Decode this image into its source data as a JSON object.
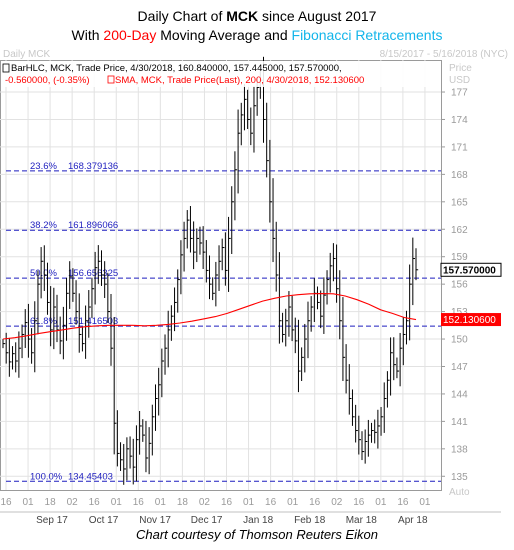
{
  "title": {
    "line1_prefix": "Daily Chart of ",
    "line1_ticker": "MCK",
    "line1_suffix": " since August 2017",
    "line2_prefix": "With ",
    "line2_sma": "200-Day",
    "line2_mid": " Moving Average and ",
    "line2_fib": "Fibonacci Retracements"
  },
  "caption": "Chart courtesy of Thomson Reuters Eikon",
  "header": {
    "left": "Daily MCK",
    "right": "8/15/2017 - 5/16/2018 (NYC)"
  },
  "legend": {
    "bar_line": "BarHLC, MCK, Trade Price, 4/30/2018, 160.840000, 157.445000, 157.570000,",
    "change": "-0.560000, (-0.35%)",
    "sma_line": "SMA, MCK, Trade Price(Last),  200,  4/30/2018, 152.130600"
  },
  "axis": {
    "price_label": "Price",
    "currency": "USD",
    "auto": "Auto"
  },
  "colors": {
    "bars": "#000000",
    "sma": "#ff0000",
    "fib": "#1f1fbf",
    "last_price_bg": "#ffffff",
    "sma_tag_bg": "#ff0000"
  },
  "chart_data": {
    "type": "line",
    "ylim": [
      133.5,
      180.5
    ],
    "y_ticks": [
      135,
      138,
      141,
      144,
      147,
      150,
      153,
      156,
      159,
      162,
      165,
      168,
      171,
      174,
      177
    ],
    "x_tick_labels": [
      "16",
      "01",
      "18",
      "02",
      "16",
      "01",
      "16",
      "01",
      "18",
      "02",
      "16",
      "01",
      "16",
      "01",
      "16",
      "02",
      "16",
      "01",
      "16",
      "01"
    ],
    "month_labels": [
      "Sep 17",
      "Oct 17",
      "Nov 17",
      "Dec 17",
      "Jan 18",
      "Feb 18",
      "Mar 18",
      "Apr 18"
    ],
    "fibonacci": [
      {
        "label": "100.0%",
        "value": 134.45403,
        "text": "134.45403"
      },
      {
        "label": "61.8%",
        "value": 151.416503,
        "text": "151.416503"
      },
      {
        "label": "50.0%",
        "value": 156.656325,
        "text": "156.656325"
      },
      {
        "label": "38.2%",
        "value": 161.896066,
        "text": "161.896066"
      },
      {
        "label": "23.6%",
        "value": 168.379136,
        "text": "168.379136"
      }
    ],
    "last_price": {
      "value": 157.57,
      "label": "157.570000"
    },
    "sma_last": {
      "value": 152.1306,
      "label": "152.130600"
    },
    "series": [
      {
        "kind": "close",
        "values": [
          149.5,
          148.5,
          147.5,
          148.4,
          147.6,
          149,
          150.5,
          151.8,
          150,
          148.5,
          152,
          156,
          158.5,
          157,
          154,
          151,
          153.5,
          151,
          149.8,
          151.5,
          155,
          156.8,
          155,
          153,
          150.5,
          149.5,
          152,
          153.5,
          155.5,
          157.8,
          158.5,
          157,
          156,
          153,
          149,
          140.8,
          137.5,
          136.8,
          135.8,
          138,
          137.2,
          136,
          139,
          140.5,
          139.5,
          137,
          138.6,
          141.5,
          143.5,
          145,
          147.6,
          149,
          151,
          152.5,
          154,
          156.5,
          159.2,
          161,
          163,
          161,
          159.5,
          161,
          160.5,
          159.5,
          157.5,
          156,
          155,
          157,
          158.5,
          160,
          157.5,
          161,
          165,
          168.5,
          172.5,
          174.5,
          176.2,
          174,
          172.5,
          175.5,
          177.5,
          178.3,
          174,
          169.5,
          165,
          161,
          157,
          152,
          150.5,
          152,
          153.5,
          151,
          149.8,
          146.5,
          148,
          150,
          152,
          153.5,
          155,
          154,
          152.5,
          154.8,
          156.5,
          158,
          158.8,
          155.5,
          152,
          148,
          145.5,
          143.5,
          141.5,
          140,
          139,
          137.7,
          138.8,
          139.5,
          140,
          139.8,
          140.5,
          141.5,
          143.5,
          145.5,
          148.5,
          147.2,
          146.5,
          149,
          150.5,
          152,
          156,
          158.8,
          157.57
        ]
      },
      {
        "kind": "sma",
        "values": [
          150,
          150.15,
          150.35,
          150.6,
          150.8,
          151.0,
          151.2,
          151.35,
          151.45,
          151.5,
          151.5,
          151.5,
          151.45,
          151.5,
          151.6,
          151.75,
          151.95,
          152.2,
          152.45,
          152.8,
          153.25,
          153.7,
          154.15,
          154.45,
          154.7,
          154.85,
          154.95,
          154.97,
          154.95,
          154.7,
          154.3,
          153.8,
          153.2,
          152.8,
          152.35,
          152.13
        ]
      }
    ]
  }
}
